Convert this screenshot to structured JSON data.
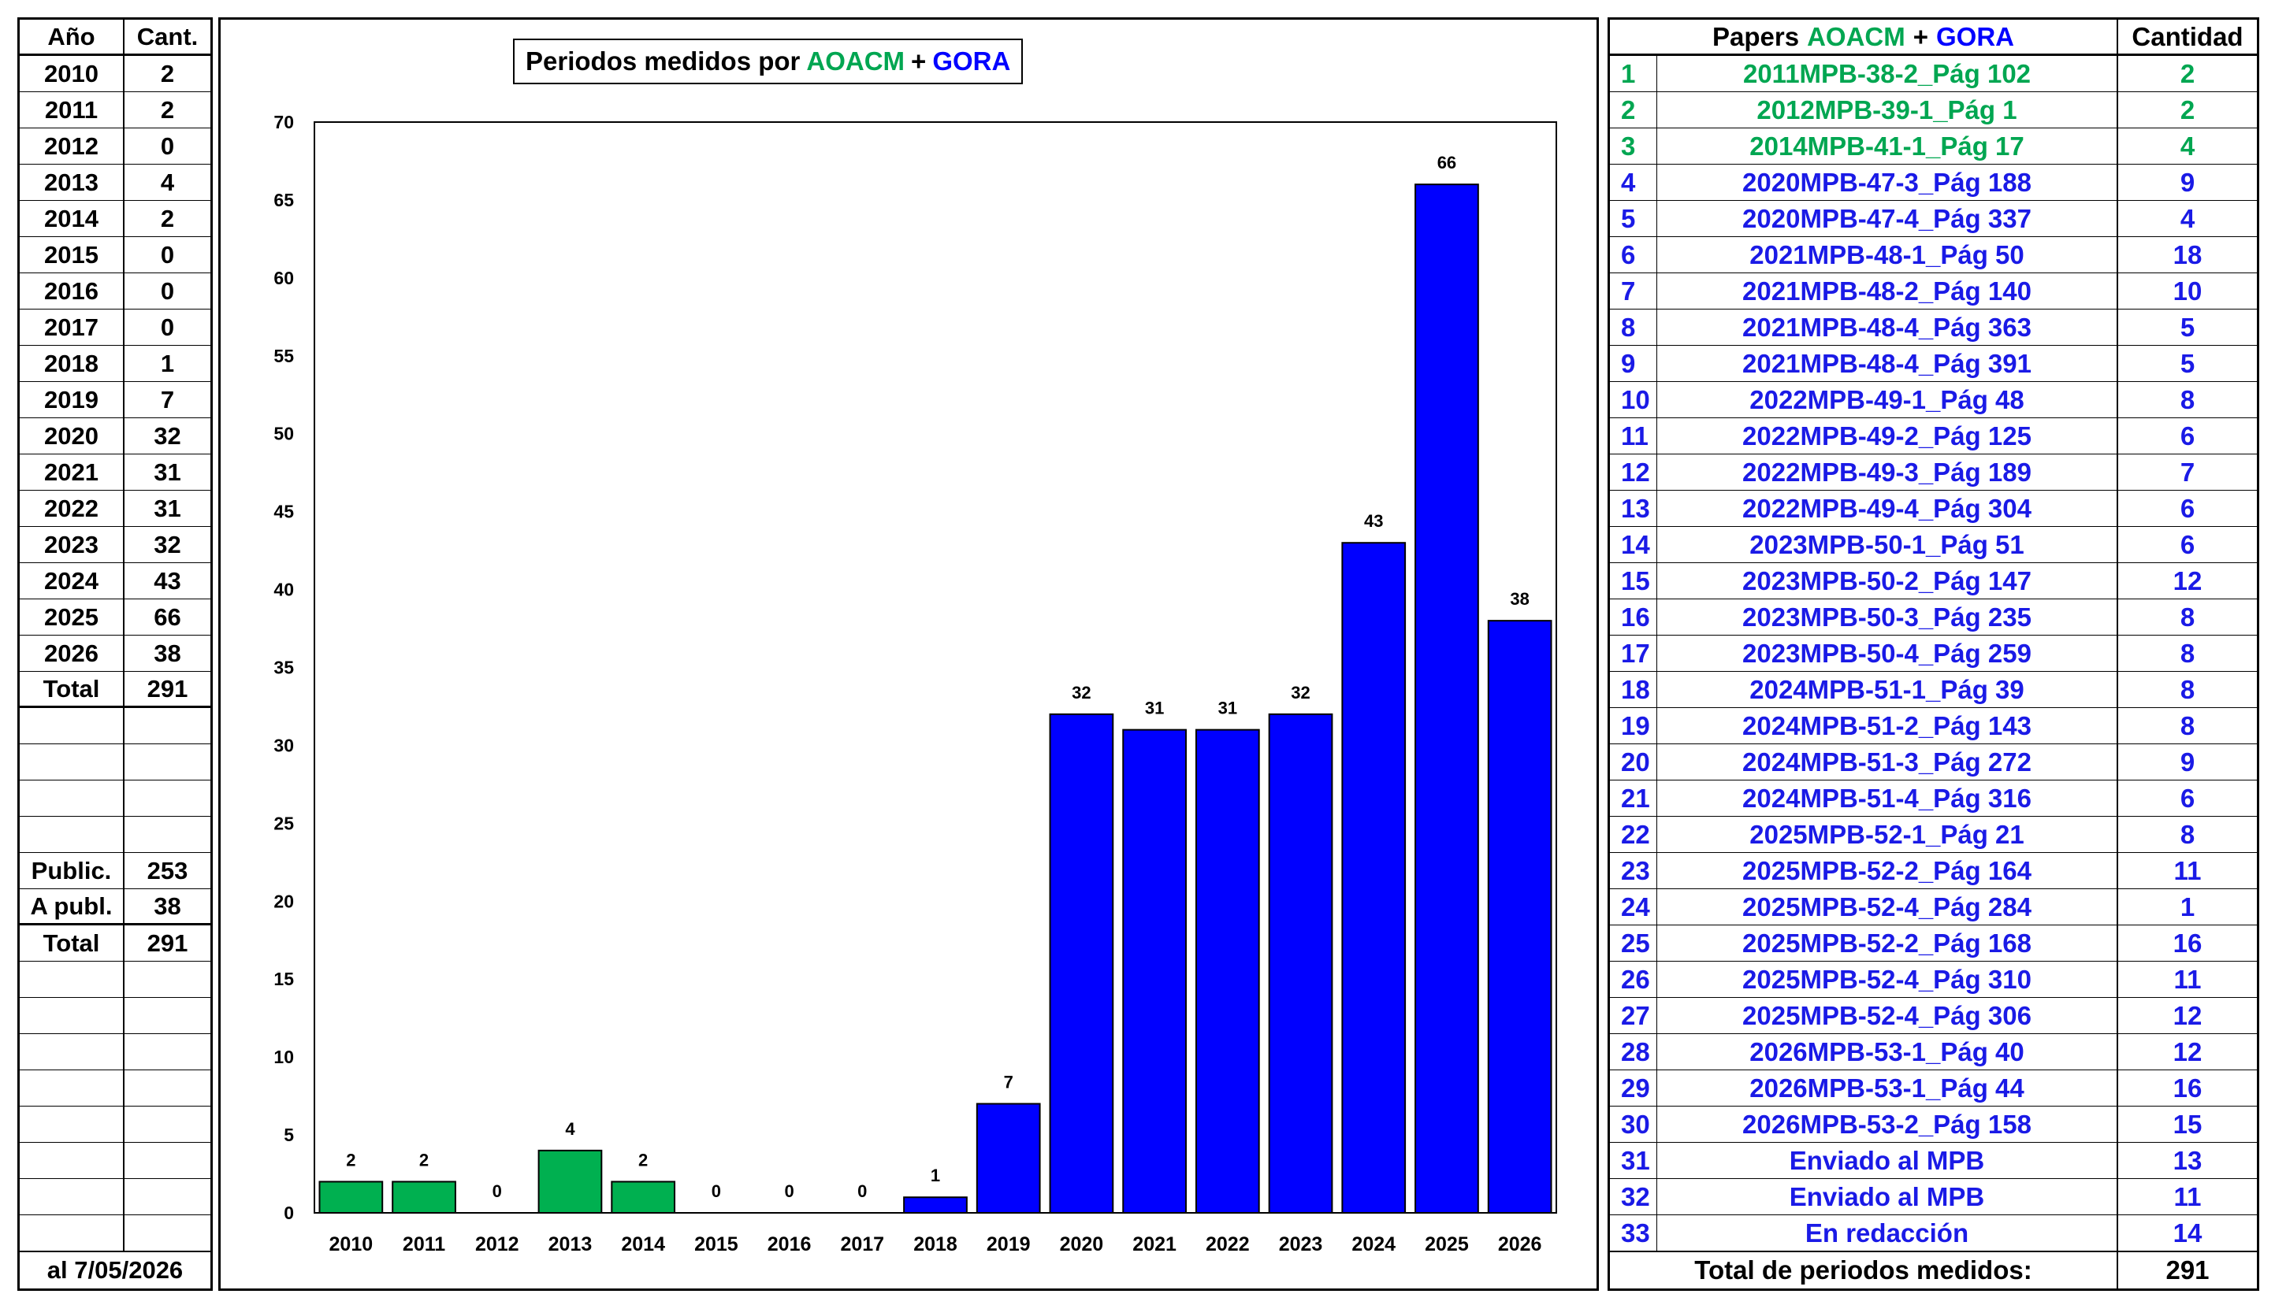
{
  "left_table": {
    "header": {
      "year": "Año",
      "count": "Cant."
    },
    "rows": [
      {
        "year": "2010",
        "count": "2"
      },
      {
        "year": "2011",
        "count": "2"
      },
      {
        "year": "2012",
        "count": "0"
      },
      {
        "year": "2013",
        "count": "4"
      },
      {
        "year": "2014",
        "count": "2"
      },
      {
        "year": "2015",
        "count": "0"
      },
      {
        "year": "2016",
        "count": "0"
      },
      {
        "year": "2017",
        "count": "0"
      },
      {
        "year": "2018",
        "count": "1"
      },
      {
        "year": "2019",
        "count": "7"
      },
      {
        "year": "2020",
        "count": "32"
      },
      {
        "year": "2021",
        "count": "31"
      },
      {
        "year": "2022",
        "count": "31"
      },
      {
        "year": "2023",
        "count": "32"
      },
      {
        "year": "2024",
        "count": "43"
      },
      {
        "year": "2025",
        "count": "66"
      },
      {
        "year": "2026",
        "count": "38"
      }
    ],
    "total": {
      "label": "Total",
      "value": "291"
    },
    "summary": [
      {
        "label": "Public.",
        "value": "253"
      },
      {
        "label": "A publ.",
        "value": "38"
      },
      {
        "label": "Total",
        "value": "291"
      }
    ],
    "footer": "al 7/05/2026"
  },
  "chart_data": {
    "type": "bar",
    "title_parts": [
      {
        "text": "Periodos medidos por",
        "color": "#000000"
      },
      {
        "text": "AOACM",
        "color": "#00a651"
      },
      {
        "text": "+",
        "color": "#000000"
      },
      {
        "text": "GORA",
        "color": "#0000ff"
      }
    ],
    "categories": [
      "2010",
      "2011",
      "2012",
      "2013",
      "2014",
      "2015",
      "2016",
      "2017",
      "2018",
      "2019",
      "2020",
      "2021",
      "2022",
      "2023",
      "2024",
      "2025",
      "2026"
    ],
    "values": [
      2,
      2,
      0,
      4,
      2,
      0,
      0,
      0,
      1,
      7,
      32,
      31,
      31,
      32,
      43,
      66,
      38
    ],
    "bar_colors": [
      "#00b050",
      "#00b050",
      "#00b050",
      "#00b050",
      "#00b050",
      "#0000ff",
      "#0000ff",
      "#0000ff",
      "#0000ff",
      "#0000ff",
      "#0000ff",
      "#0000ff",
      "#0000ff",
      "#0000ff",
      "#0000ff",
      "#0000ff",
      "#0000ff"
    ],
    "data_labels": true,
    "ylim": [
      0,
      70
    ],
    "yticks": [
      0,
      5,
      10,
      15,
      20,
      25,
      30,
      35,
      40,
      45,
      50,
      55,
      60,
      65,
      70
    ],
    "xlabel": "",
    "ylabel": "",
    "grid": false,
    "legend": "none"
  },
  "right_table": {
    "header": {
      "papers": "Papers",
      "aoacm": "AOACM",
      "plus": "+",
      "gora": "GORA",
      "quantity": "Cantidad"
    },
    "rows": [
      {
        "n": "1",
        "paper": "2011MPB-38-2_Pág 102",
        "qty": "2",
        "color": "green"
      },
      {
        "n": "2",
        "paper": "2012MPB-39-1_Pág 1",
        "qty": "2",
        "color": "green"
      },
      {
        "n": "3",
        "paper": "2014MPB-41-1_Pág 17",
        "qty": "4",
        "color": "green"
      },
      {
        "n": "4",
        "paper": "2020MPB-47-3_Pág 188",
        "qty": "9",
        "color": "blue"
      },
      {
        "n": "5",
        "paper": "2020MPB-47-4_Pág 337",
        "qty": "4",
        "color": "blue"
      },
      {
        "n": "6",
        "paper": "2021MPB-48-1_Pág 50",
        "qty": "18",
        "color": "blue"
      },
      {
        "n": "7",
        "paper": "2021MPB-48-2_Pág 140",
        "qty": "10",
        "color": "blue"
      },
      {
        "n": "8",
        "paper": "2021MPB-48-4_Pág 363",
        "qty": "5",
        "color": "blue"
      },
      {
        "n": "9",
        "paper": "2021MPB-48-4_Pág 391",
        "qty": "5",
        "color": "blue"
      },
      {
        "n": "10",
        "paper": "2022MPB-49-1_Pág 48",
        "qty": "8",
        "color": "blue"
      },
      {
        "n": "11",
        "paper": "2022MPB-49-2_Pág 125",
        "qty": "6",
        "color": "blue"
      },
      {
        "n": "12",
        "paper": "2022MPB-49-3_Pág 189",
        "qty": "7",
        "color": "blue"
      },
      {
        "n": "13",
        "paper": "2022MPB-49-4_Pág 304",
        "qty": "6",
        "color": "blue"
      },
      {
        "n": "14",
        "paper": "2023MPB-50-1_Pág 51",
        "qty": "6",
        "color": "blue"
      },
      {
        "n": "15",
        "paper": "2023MPB-50-2_Pág 147",
        "qty": "12",
        "color": "blue"
      },
      {
        "n": "16",
        "paper": "2023MPB-50-3_Pág 235",
        "qty": "8",
        "color": "blue"
      },
      {
        "n": "17",
        "paper": "2023MPB-50-4_Pág 259",
        "qty": "8",
        "color": "blue"
      },
      {
        "n": "18",
        "paper": "2024MPB-51-1_Pág 39",
        "qty": "8",
        "color": "blue"
      },
      {
        "n": "19",
        "paper": "2024MPB-51-2_Pág 143",
        "qty": "8",
        "color": "blue"
      },
      {
        "n": "20",
        "paper": "2024MPB-51-3_Pág 272",
        "qty": "9",
        "color": "blue"
      },
      {
        "n": "21",
        "paper": "2024MPB-51-4_Pág 316",
        "qty": "6",
        "color": "blue"
      },
      {
        "n": "22",
        "paper": "2025MPB-52-1_Pág 21",
        "qty": "8",
        "color": "blue"
      },
      {
        "n": "23",
        "paper": "2025MPB-52-2_Pág 164",
        "qty": "11",
        "color": "blue"
      },
      {
        "n": "24",
        "paper": "2025MPB-52-4_Pág 284",
        "qty": "1",
        "color": "blue"
      },
      {
        "n": "25",
        "paper": "2025MPB-52-2_Pág 168",
        "qty": "16",
        "color": "blue"
      },
      {
        "n": "26",
        "paper": "2025MPB-52-4_Pág 310",
        "qty": "11",
        "color": "blue"
      },
      {
        "n": "27",
        "paper": "2025MPB-52-4_Pág 306",
        "qty": "12",
        "color": "blue"
      },
      {
        "n": "28",
        "paper": "2026MPB-53-1_Pág 40",
        "qty": "12",
        "color": "blue"
      },
      {
        "n": "29",
        "paper": "2026MPB-53-1_Pág 44",
        "qty": "16",
        "color": "blue"
      },
      {
        "n": "30",
        "paper": "2026MPB-53-2_Pág 158",
        "qty": "15",
        "color": "blue"
      },
      {
        "n": "31",
        "paper": "Enviado al MPB",
        "qty": "13",
        "color": "blue"
      },
      {
        "n": "32",
        "paper": "Enviado al MPB",
        "qty": "11",
        "color": "blue"
      },
      {
        "n": "33",
        "paper": "En redacción",
        "qty": "14",
        "color": "blue"
      }
    ],
    "total": {
      "label": "Total de periodos medidos:",
      "value": "291"
    }
  }
}
